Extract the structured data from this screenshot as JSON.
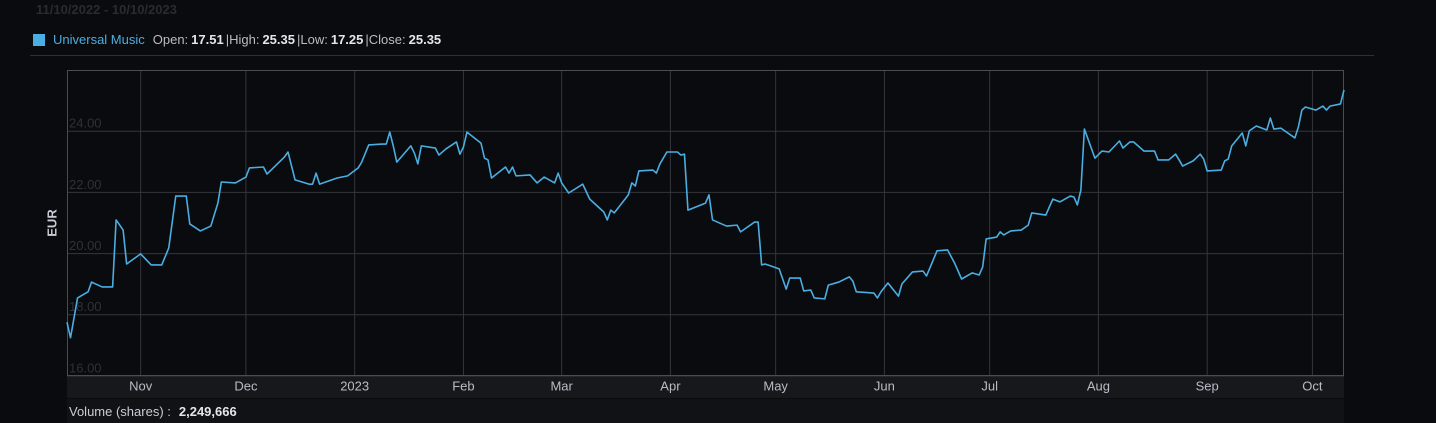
{
  "chart_data": {
    "type": "line",
    "title": "11/10/2022 - 10/10/2023",
    "ylabel": "EUR",
    "x": [
      "2022-10-11",
      "2022-10-12",
      "2022-10-14",
      "2022-10-17",
      "2022-10-18",
      "2022-10-21",
      "2022-10-24",
      "2022-10-25",
      "2022-10-27",
      "2022-10-28",
      "2022-11-01",
      "2022-11-04",
      "2022-11-07",
      "2022-11-09",
      "2022-11-11",
      "2022-11-14",
      "2022-11-15",
      "2022-11-18",
      "2022-11-21",
      "2022-11-23",
      "2022-11-24",
      "2022-11-28",
      "2022-12-01",
      "2022-12-02",
      "2022-12-06",
      "2022-12-07",
      "2022-12-12",
      "2022-12-13",
      "2022-12-15",
      "2022-12-19",
      "2022-12-20",
      "2022-12-21",
      "2022-12-22",
      "2022-12-27",
      "2022-12-30",
      "2023-01-02",
      "2023-01-03",
      "2023-01-05",
      "2023-01-09",
      "2023-01-10",
      "2023-01-11",
      "2023-01-12",
      "2023-01-13",
      "2023-01-17",
      "2023-01-18",
      "2023-01-19",
      "2023-01-20",
      "2023-01-24",
      "2023-01-25",
      "2023-01-27",
      "2023-01-30",
      "2023-01-31",
      "2023-02-01",
      "2023-02-02",
      "2023-02-06",
      "2023-02-07",
      "2023-02-08",
      "2023-02-09",
      "2023-02-13",
      "2023-02-14",
      "2023-02-15",
      "2023-02-16",
      "2023-02-20",
      "2023-02-22",
      "2023-02-24",
      "2023-02-27",
      "2023-02-28",
      "2023-03-01",
      "2023-03-03",
      "2023-03-07",
      "2023-03-09",
      "2023-03-13",
      "2023-03-14",
      "2023-03-15",
      "2023-03-16",
      "2023-03-20",
      "2023-03-21",
      "2023-03-22",
      "2023-03-23",
      "2023-03-27",
      "2023-03-28",
      "2023-03-29",
      "2023-03-31",
      "2023-04-03",
      "2023-04-04",
      "2023-04-05",
      "2023-04-06",
      "2023-04-11",
      "2023-04-12",
      "2023-04-13",
      "2023-04-17",
      "2023-04-20",
      "2023-04-21",
      "2023-04-25",
      "2023-04-26",
      "2023-04-27",
      "2023-04-28",
      "2023-05-02",
      "2023-05-04",
      "2023-05-05",
      "2023-05-08",
      "2023-05-09",
      "2023-05-11",
      "2023-05-12",
      "2023-05-15",
      "2023-05-16",
      "2023-05-19",
      "2023-05-22",
      "2023-05-23",
      "2023-05-24",
      "2023-05-29",
      "2023-05-30",
      "2023-05-31",
      "2023-06-02",
      "2023-06-05",
      "2023-06-06",
      "2023-06-09",
      "2023-06-12",
      "2023-06-13",
      "2023-06-16",
      "2023-06-19",
      "2023-06-21",
      "2023-06-23",
      "2023-06-26",
      "2023-06-28",
      "2023-06-29",
      "2023-06-30",
      "2023-07-03",
      "2023-07-04",
      "2023-07-05",
      "2023-07-07",
      "2023-07-10",
      "2023-07-12",
      "2023-07-13",
      "2023-07-17",
      "2023-07-19",
      "2023-07-21",
      "2023-07-24",
      "2023-07-25",
      "2023-07-26",
      "2023-07-27",
      "2023-07-28",
      "2023-07-31",
      "2023-08-02",
      "2023-08-04",
      "2023-08-07",
      "2023-08-08",
      "2023-08-10",
      "2023-08-11",
      "2023-08-14",
      "2023-08-17",
      "2023-08-18",
      "2023-08-21",
      "2023-08-23",
      "2023-08-24",
      "2023-08-25",
      "2023-08-28",
      "2023-08-30",
      "2023-08-31",
      "2023-09-01",
      "2023-09-05",
      "2023-09-06",
      "2023-09-07",
      "2023-09-08",
      "2023-09-11",
      "2023-09-12",
      "2023-09-13",
      "2023-09-15",
      "2023-09-18",
      "2023-09-19",
      "2023-09-20",
      "2023-09-22",
      "2023-09-26",
      "2023-09-27",
      "2023-09-28",
      "2023-09-29",
      "2023-10-02",
      "2023-10-04",
      "2023-10-05",
      "2023-10-06",
      "2023-10-09",
      "2023-10-10"
    ],
    "series": [
      {
        "name": "Universal Music",
        "color": "#4aaee2",
        "values": [
          17.76,
          17.25,
          18.55,
          18.75,
          19.07,
          18.91,
          18.91,
          21.1,
          20.77,
          19.66,
          19.99,
          19.63,
          19.63,
          20.18,
          21.88,
          21.88,
          20.97,
          20.74,
          20.9,
          21.65,
          22.34,
          22.31,
          22.5,
          22.8,
          22.83,
          22.6,
          23.16,
          23.32,
          22.41,
          22.27,
          22.27,
          22.63,
          22.27,
          22.47,
          22.54,
          22.8,
          22.99,
          23.55,
          23.58,
          23.58,
          23.97,
          23.52,
          22.99,
          23.52,
          23.29,
          22.93,
          23.52,
          23.45,
          23.22,
          23.42,
          23.65,
          23.25,
          23.48,
          23.97,
          23.61,
          23.12,
          23.06,
          22.47,
          22.83,
          22.63,
          22.83,
          22.54,
          22.57,
          22.31,
          22.5,
          22.31,
          22.63,
          22.31,
          21.98,
          22.27,
          21.78,
          21.36,
          21.1,
          21.42,
          21.33,
          21.92,
          22.31,
          22.21,
          22.7,
          22.73,
          22.63,
          22.93,
          23.32,
          23.32,
          23.22,
          23.25,
          21.42,
          21.65,
          21.92,
          21.1,
          20.9,
          20.93,
          20.71,
          21.03,
          21.03,
          19.63,
          19.66,
          19.5,
          18.84,
          19.2,
          19.2,
          18.78,
          18.81,
          18.55,
          18.52,
          18.97,
          19.07,
          19.24,
          19.1,
          18.75,
          18.71,
          18.55,
          18.75,
          19.04,
          18.61,
          19.01,
          19.4,
          19.43,
          19.27,
          20.09,
          20.12,
          19.69,
          19.17,
          19.37,
          19.3,
          19.56,
          20.48,
          20.54,
          20.71,
          20.61,
          20.74,
          20.77,
          20.93,
          21.33,
          21.26,
          21.78,
          21.69,
          21.88,
          21.85,
          21.59,
          22.08,
          24.07,
          23.12,
          23.35,
          23.32,
          23.68,
          23.45,
          23.65,
          23.65,
          23.35,
          23.35,
          23.06,
          23.06,
          23.25,
          23.06,
          22.86,
          23.03,
          23.25,
          23.09,
          22.7,
          22.73,
          23.03,
          23.09,
          23.52,
          23.94,
          23.52,
          24.01,
          24.17,
          24.04,
          24.43,
          24.07,
          24.1,
          23.78,
          24.14,
          24.69,
          24.79,
          24.69,
          24.82,
          24.69,
          24.82,
          24.89,
          25.35
        ]
      }
    ],
    "xlim": [
      "2022-10-11",
      "2023-10-10"
    ],
    "xticks": [
      {
        "value": "2022-11-01",
        "label": "Nov"
      },
      {
        "value": "2022-12-01",
        "label": "Dec"
      },
      {
        "value": "2023-01-01",
        "label": "2023"
      },
      {
        "value": "2023-02-01",
        "label": "Feb"
      },
      {
        "value": "2023-03-01",
        "label": "Mar"
      },
      {
        "value": "2023-04-01",
        "label": "Apr"
      },
      {
        "value": "2023-05-01",
        "label": "May"
      },
      {
        "value": "2023-06-01",
        "label": "Jun"
      },
      {
        "value": "2023-07-01",
        "label": "Jul"
      },
      {
        "value": "2023-08-01",
        "label": "Aug"
      },
      {
        "value": "2023-09-01",
        "label": "Sep"
      },
      {
        "value": "2023-10-01",
        "label": "Oct"
      }
    ],
    "ylim": [
      16,
      26
    ],
    "yticks": [
      {
        "value": 16,
        "label": "16.00"
      },
      {
        "value": 18,
        "label": "18.00"
      },
      {
        "value": 20,
        "label": "20.00"
      },
      {
        "value": 22,
        "label": "22.00"
      },
      {
        "value": 24,
        "label": "24.00"
      }
    ],
    "grid": true,
    "legend_stats": [
      {
        "label": "Open:",
        "value": 17.51
      },
      {
        "label": "|High:",
        "value": 25.35
      },
      {
        "label": "|Low:",
        "value": 17.25
      },
      {
        "label": "|Close:",
        "value": 25.35
      }
    ],
    "volume": {
      "label": "Volume (shares) :",
      "value": "2,249,666"
    }
  }
}
